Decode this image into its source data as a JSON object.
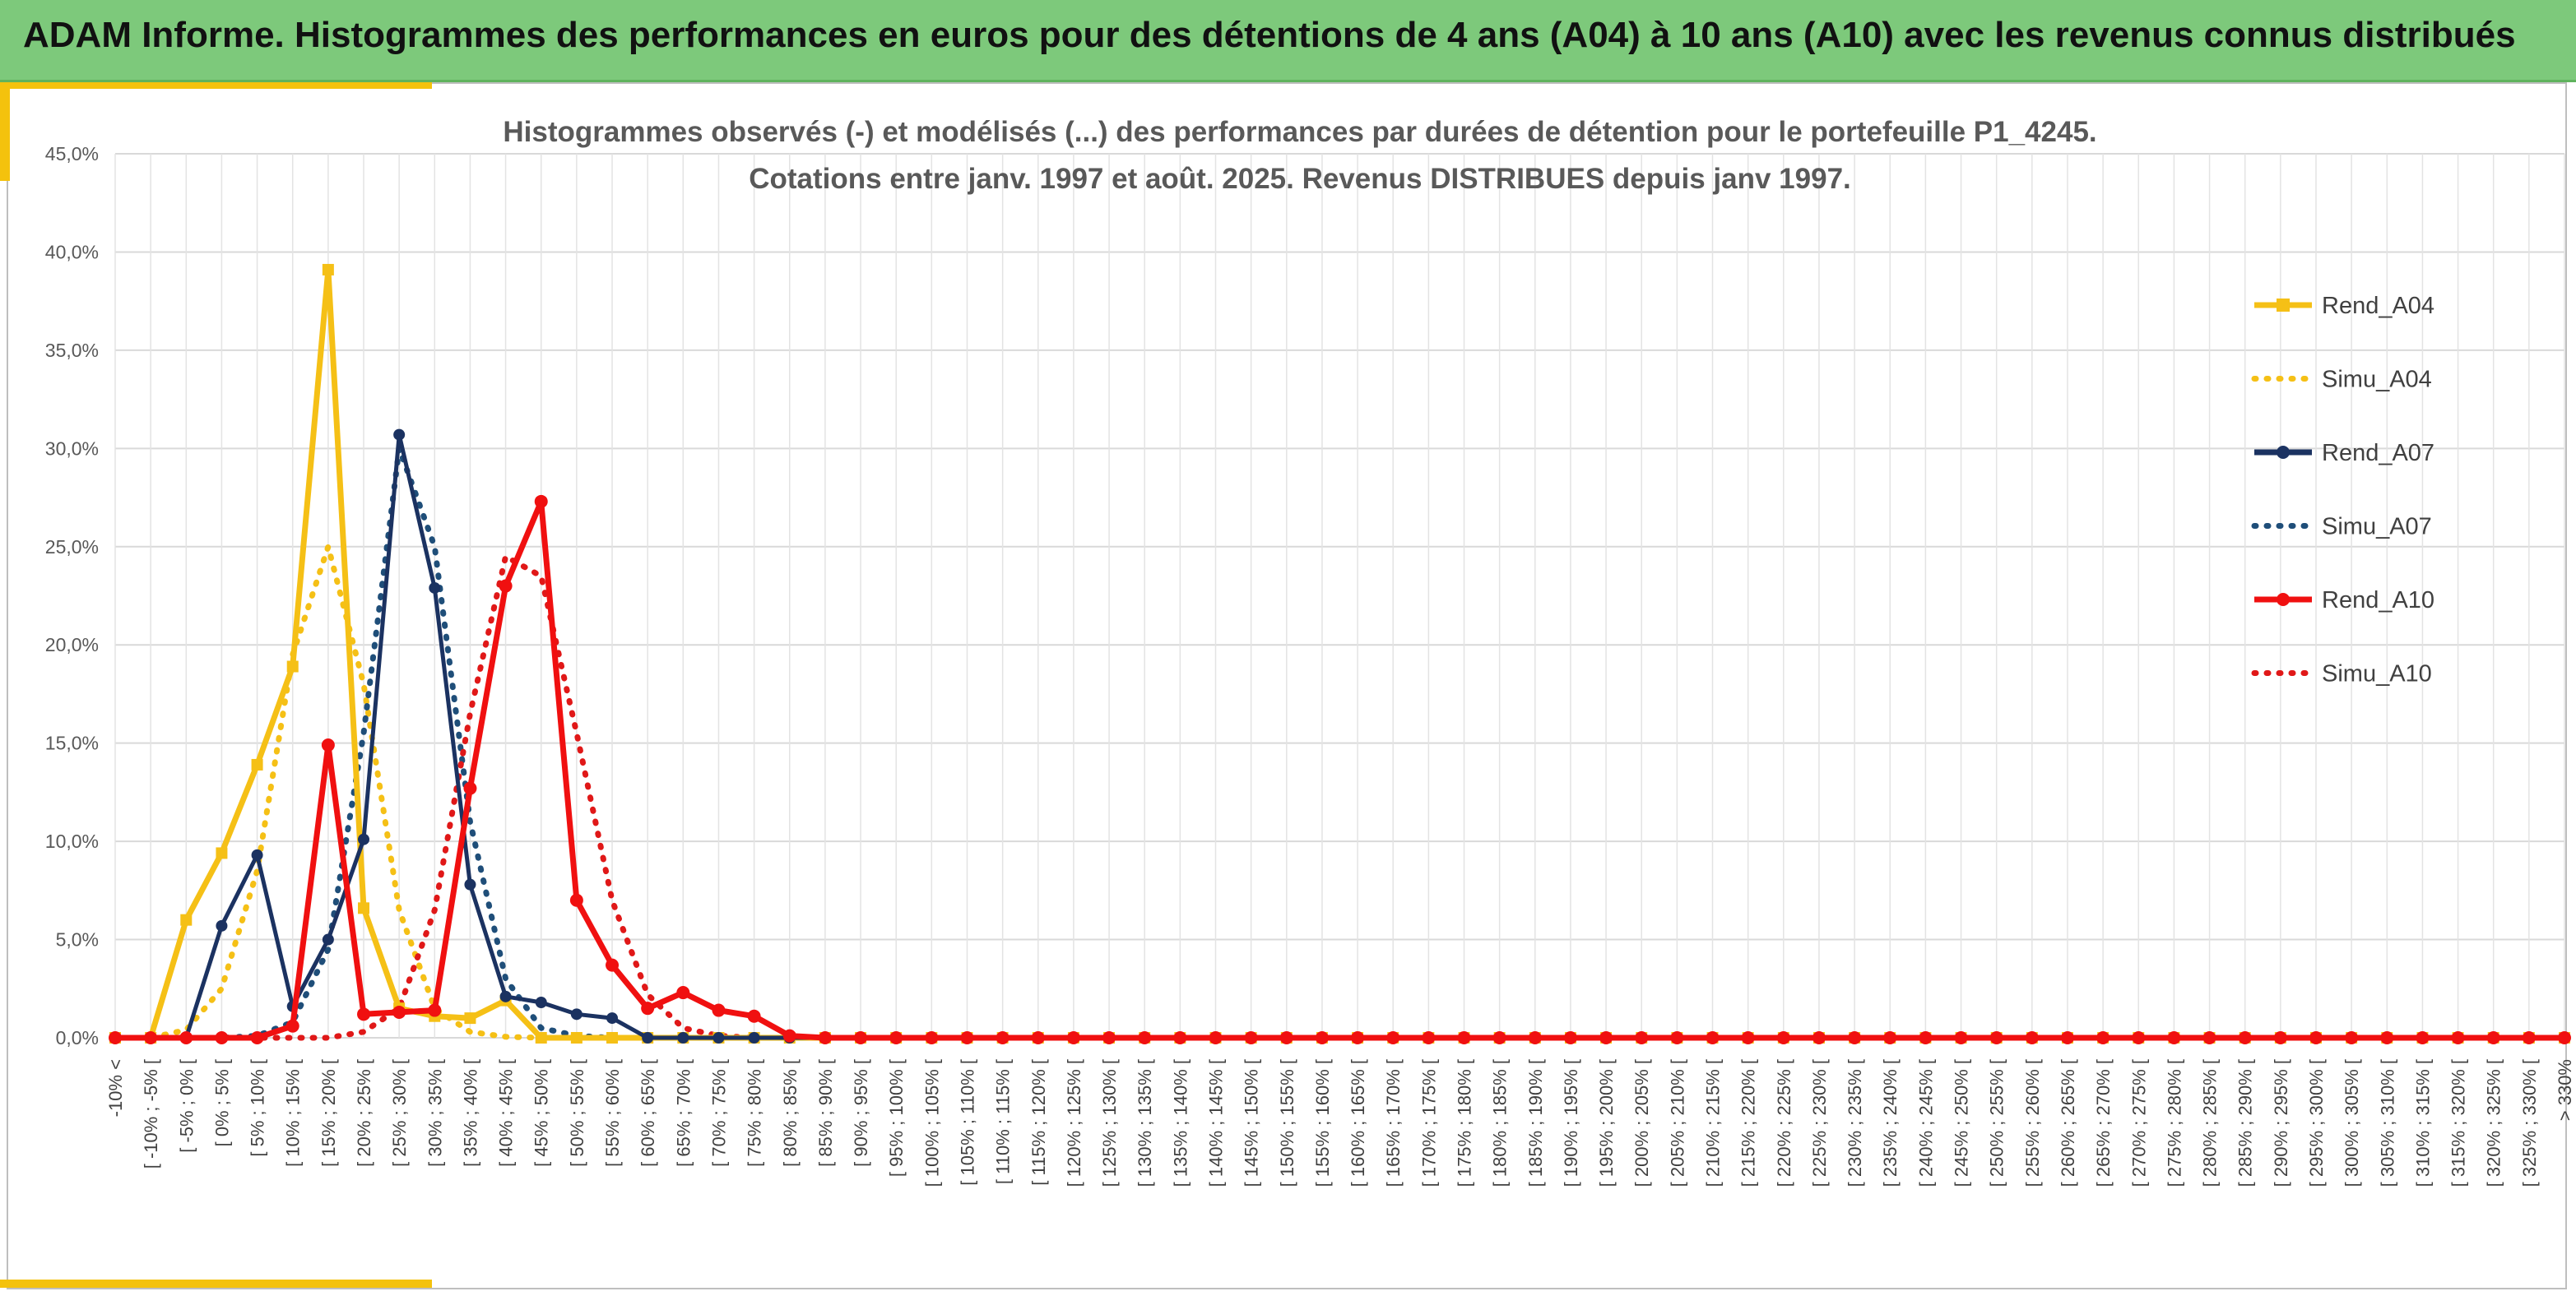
{
  "banner": {
    "title": "ADAM Informe. Histogrammes des performances en euros pour des détentions de 4 ans (A04) à 10 ans (A10) avec les revenus connus distribués"
  },
  "colors": {
    "banner_bg": "#7dc97b",
    "accent": "#f4c20d",
    "gold": "#f5c016",
    "navy": "#1b3261",
    "red": "#f01010"
  },
  "chart_data": {
    "type": "line",
    "title_lines": [
      "Histogrammes observés (-) et modélisés (...) des performances par durées de détention pour le portefeuille P1_4245.",
      "Cotations entre janv. 1997 et août. 2025. Revenus DISTRIBUES depuis janv 1997."
    ],
    "ylim": [
      0,
      45
    ],
    "y_ticks": [
      "0,0%",
      "5,0%",
      "10,0%",
      "15,0%",
      "20,0%",
      "25,0%",
      "30,0%",
      "35,0%",
      "40,0%",
      "45,0%"
    ],
    "grid": true,
    "legend_position": "right",
    "categories": [
      "-10% <",
      "[ -10% ; -5% [",
      "[ -5% ; 0% [",
      "[ 0% ; 5% [",
      "[ 5% ; 10% [",
      "[ 10% ; 15% [",
      "[ 15% ; 20% [",
      "[ 20% ; 25% [",
      "[ 25% ; 30% [",
      "[ 30% ; 35% [",
      "[ 35% ; 40% [",
      "[ 40% ; 45% [",
      "[ 45% ; 50% [",
      "[ 50% ; 55% [",
      "[ 55% ; 60% [",
      "[ 60% ; 65% [",
      "[ 65% ; 70% [",
      "[ 70% ; 75% [",
      "[ 75% ; 80% [",
      "[ 80% ; 85% [",
      "[ 85% ; 90% [",
      "[ 90% ; 95% [",
      "[ 95% ; 100% [",
      "[ 100% ; 105% [",
      "[ 105% ; 110% [",
      "[ 110% ; 115% [",
      "[ 115% ; 120% [",
      "[ 120% ; 125% [",
      "[ 125% ; 130% [",
      "[ 130% ; 135% [",
      "[ 135% ; 140% [",
      "[ 140% ; 145% [",
      "[ 145% ; 150% [",
      "[ 150% ; 155% [",
      "[ 155% ; 160% [",
      "[ 160% ; 165% [",
      "[ 165% ; 170% [",
      "[ 170% ; 175% [",
      "[ 175% ; 180% [",
      "[ 180% ; 185% [",
      "[ 185% ; 190% [",
      "[ 190% ; 195% [",
      "[ 195% ; 200% [",
      "[ 200% ; 205% [",
      "[ 205% ; 210% [",
      "[ 210% ; 215% [",
      "[ 215% ; 220% [",
      "[ 220% ; 225% [",
      "[ 225% ; 230% [",
      "[ 230% ; 235% [",
      "[ 235% ; 240% [",
      "[ 240% ; 245% [",
      "[ 245% ; 250% [",
      "[ 250% ; 255% [",
      "[ 255% ; 260% [",
      "[ 260% ; 265% [",
      "[ 265% ; 270% [",
      "[ 270% ; 275% [",
      "[ 275% ; 280% [",
      "[ 280% ; 285% [",
      "[ 285% ; 290% [",
      "[ 290% ; 295% [",
      "[ 295% ; 300% [",
      "[ 300% ; 305% [",
      "[ 305% ; 310% [",
      "[ 310% ; 315% [",
      "[ 315% ; 320% [",
      "[ 320% ; 325% [",
      "[ 325% ; 330% [",
      "> 330%"
    ],
    "series": [
      {
        "name": "Rend_A04",
        "color": "#f5c016",
        "style": "solid",
        "marker": "square",
        "values": [
          0,
          0,
          6.0,
          9.4,
          13.9,
          18.9,
          39.1,
          6.6,
          1.5,
          1.1,
          1.0,
          1.9,
          0,
          0,
          0,
          0,
          0,
          0,
          0,
          0,
          0,
          0,
          0,
          0,
          0,
          0,
          0,
          0,
          0,
          0,
          0,
          0,
          0,
          0,
          0,
          0,
          0,
          0,
          0,
          0,
          0,
          0,
          0,
          0,
          0,
          0,
          0,
          0,
          0,
          0,
          0,
          0,
          0,
          0,
          0,
          0,
          0,
          0,
          0,
          0,
          0,
          0,
          0,
          0,
          0,
          0,
          0,
          0,
          0,
          0
        ]
      },
      {
        "name": "Simu_A04",
        "color": "#f5c016",
        "style": "dotted",
        "marker": "none",
        "values": [
          0,
          0,
          0.4,
          2.5,
          8.5,
          19.5,
          25.0,
          18.0,
          6.5,
          1.5,
          0.3,
          0.05,
          0,
          0,
          0,
          0,
          0,
          0,
          0,
          0,
          0,
          0,
          0,
          0,
          0,
          0,
          0,
          0,
          0,
          0,
          0,
          0,
          0,
          0,
          0,
          0,
          0,
          0,
          0,
          0,
          0,
          0,
          0,
          0,
          0,
          0,
          0,
          0,
          0,
          0,
          0,
          0,
          0,
          0,
          0,
          0,
          0,
          0,
          0,
          0,
          0,
          0,
          0,
          0,
          0,
          0,
          0,
          0,
          0,
          0
        ]
      },
      {
        "name": "Rend_A07",
        "color": "#1b3261",
        "style": "solid",
        "marker": "circle",
        "values": [
          0,
          0,
          0,
          5.7,
          9.3,
          1.6,
          5.0,
          10.1,
          30.7,
          22.9,
          7.8,
          2.1,
          1.8,
          1.2,
          1.0,
          0,
          0,
          0,
          0,
          0,
          0,
          0,
          0,
          0,
          0,
          0,
          0,
          0,
          0,
          0,
          0,
          0,
          0,
          0,
          0,
          0,
          0,
          0,
          0,
          0,
          0,
          0,
          0,
          0,
          0,
          0,
          0,
          0,
          0,
          0,
          0,
          0,
          0,
          0,
          0,
          0,
          0,
          0,
          0,
          0,
          0,
          0,
          0,
          0,
          0,
          0,
          0,
          0,
          0,
          0
        ]
      },
      {
        "name": "Simu_A07",
        "color": "#1f4e79",
        "style": "dotted",
        "marker": "none",
        "values": [
          0,
          0,
          0,
          0,
          0.1,
          0.8,
          4.5,
          15.5,
          30.0,
          25.0,
          11.0,
          3.0,
          0.5,
          0.1,
          0,
          0,
          0,
          0,
          0,
          0,
          0,
          0,
          0,
          0,
          0,
          0,
          0,
          0,
          0,
          0,
          0,
          0,
          0,
          0,
          0,
          0,
          0,
          0,
          0,
          0,
          0,
          0,
          0,
          0,
          0,
          0,
          0,
          0,
          0,
          0,
          0,
          0,
          0,
          0,
          0,
          0,
          0,
          0,
          0,
          0,
          0,
          0,
          0,
          0,
          0,
          0,
          0,
          0,
          0,
          0
        ]
      },
      {
        "name": "Rend_A10",
        "color": "#f01010",
        "style": "solid",
        "marker": "circle",
        "values": [
          0,
          0,
          0,
          0,
          0,
          0.6,
          14.9,
          1.2,
          1.3,
          1.4,
          12.7,
          23.0,
          27.3,
          7.0,
          3.7,
          1.5,
          2.3,
          1.4,
          1.1,
          0.1,
          0,
          0,
          0,
          0,
          0,
          0,
          0,
          0,
          0,
          0,
          0,
          0,
          0,
          0,
          0,
          0,
          0,
          0,
          0,
          0,
          0,
          0,
          0,
          0,
          0,
          0,
          0,
          0,
          0,
          0,
          0,
          0,
          0,
          0,
          0,
          0,
          0,
          0,
          0,
          0,
          0,
          0,
          0,
          0,
          0,
          0,
          0,
          0,
          0,
          0
        ]
      },
      {
        "name": "Simu_A10",
        "color": "#e01818",
        "style": "dotted",
        "marker": "none",
        "values": [
          0,
          0,
          0,
          0,
          0,
          0,
          0,
          0.3,
          1.5,
          6.5,
          16.5,
          24.5,
          23.5,
          15.5,
          7.0,
          2.2,
          0.5,
          0.1,
          0,
          0,
          0,
          0,
          0,
          0,
          0,
          0,
          0,
          0,
          0,
          0,
          0,
          0,
          0,
          0,
          0,
          0,
          0,
          0,
          0,
          0,
          0,
          0,
          0,
          0,
          0,
          0,
          0,
          0,
          0,
          0,
          0,
          0,
          0,
          0,
          0,
          0,
          0,
          0,
          0,
          0,
          0,
          0,
          0,
          0,
          0,
          0,
          0,
          0,
          0,
          0
        ]
      }
    ]
  }
}
